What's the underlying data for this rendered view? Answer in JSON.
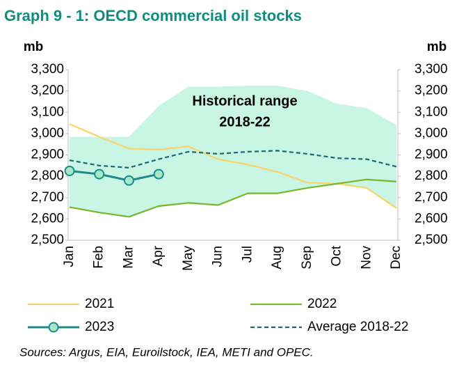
{
  "chart_data": {
    "type": "line",
    "title": "Graph 9 - 1: OECD commercial oil stocks",
    "y_label": "mb",
    "y2_label": "mb",
    "categories": [
      "Jan",
      "Feb",
      "Mar",
      "Apr",
      "May",
      "Jun",
      "Jul",
      "Aug",
      "Sep",
      "Oct",
      "Nov",
      "Dec"
    ],
    "ylim": [
      2500,
      3300
    ],
    "yticks": [
      {
        "value": 2500,
        "label": "2,500"
      },
      {
        "value": 2600,
        "label": "2,600"
      },
      {
        "value": 2700,
        "label": "2,700"
      },
      {
        "value": 2800,
        "label": "2,800"
      },
      {
        "value": 2900,
        "label": "2,900"
      },
      {
        "value": 3000,
        "label": "3,000"
      },
      {
        "value": 3100,
        "label": "3,100"
      },
      {
        "value": 3200,
        "label": "3,200"
      },
      {
        "value": 3300,
        "label": "3,300"
      }
    ],
    "y2lim": [
      2500,
      3300
    ],
    "y2ticks": [
      {
        "value": 2500,
        "label": "2,500"
      },
      {
        "value": 2600,
        "label": "2,600"
      },
      {
        "value": 2700,
        "label": "2,700"
      },
      {
        "value": 2800,
        "label": "2,800"
      },
      {
        "value": 2900,
        "label": "2,900"
      },
      {
        "value": 3000,
        "label": "3,000"
      },
      {
        "value": 3100,
        "label": "3,100"
      },
      {
        "value": 3200,
        "label": "3,200"
      },
      {
        "value": 3300,
        "label": "3,300"
      }
    ],
    "range": {
      "color": "#c8f5e4",
      "lower": [
        2655,
        2630,
        2610,
        2660,
        2675,
        2665,
        2720,
        2720,
        2745,
        2760,
        2745,
        2650
      ],
      "upper": [
        2985,
        2985,
        2985,
        3130,
        3220,
        3220,
        3225,
        3225,
        3200,
        3140,
        3120,
        3040
      ]
    },
    "annotation": [
      "Historical range",
      "2018-22"
    ],
    "series": [
      {
        "name": "2021",
        "color": "#fcd36a",
        "values": [
          3045,
          2985,
          2930,
          2925,
          2940,
          2880,
          2855,
          2820,
          2770,
          2765,
          2745,
          2650
        ]
      },
      {
        "name": "2022",
        "color": "#76b82a",
        "values": [
          2655,
          2630,
          2610,
          2660,
          2675,
          2665,
          2720,
          2720,
          2745,
          2765,
          2785,
          2775
        ]
      },
      {
        "name": "2023",
        "color": "#1a8a8a",
        "marker_fill": "#a6e8cc",
        "values": [
          2825,
          2810,
          2780,
          2810,
          null,
          null,
          null,
          null,
          null,
          null,
          null,
          null
        ]
      },
      {
        "name": "Average 2018-22",
        "color": "#1d6672",
        "dashed": true,
        "values": [
          2875,
          2850,
          2840,
          2880,
          2915,
          2905,
          2915,
          2920,
          2905,
          2885,
          2880,
          2845
        ]
      }
    ],
    "source": "Sources: Argus, EIA, Euroilstock, IEA, METI and OPEC."
  }
}
